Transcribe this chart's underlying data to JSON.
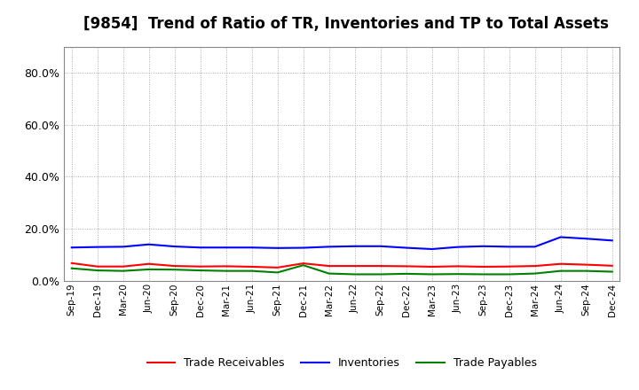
{
  "title": "[9854]  Trend of Ratio of TR, Inventories and TP to Total Assets",
  "x_labels": [
    "Sep-19",
    "Dec-19",
    "Mar-20",
    "Jun-20",
    "Sep-20",
    "Dec-20",
    "Mar-21",
    "Jun-21",
    "Sep-21",
    "Dec-21",
    "Mar-22",
    "Jun-22",
    "Sep-22",
    "Dec-22",
    "Mar-23",
    "Jun-23",
    "Sep-23",
    "Dec-23",
    "Mar-24",
    "Jun-24",
    "Sep-24",
    "Dec-24"
  ],
  "trade_receivables": [
    0.068,
    0.055,
    0.055,
    0.065,
    0.057,
    0.055,
    0.056,
    0.054,
    0.051,
    0.067,
    0.057,
    0.057,
    0.057,
    0.056,
    0.054,
    0.056,
    0.054,
    0.055,
    0.057,
    0.065,
    0.062,
    0.058
  ],
  "inventories": [
    0.128,
    0.13,
    0.131,
    0.14,
    0.132,
    0.128,
    0.128,
    0.128,
    0.126,
    0.127,
    0.131,
    0.133,
    0.133,
    0.127,
    0.122,
    0.13,
    0.133,
    0.131,
    0.131,
    0.168,
    0.162,
    0.155
  ],
  "trade_payables": [
    0.048,
    0.04,
    0.038,
    0.044,
    0.043,
    0.04,
    0.038,
    0.038,
    0.032,
    0.06,
    0.028,
    0.025,
    0.025,
    0.027,
    0.025,
    0.026,
    0.025,
    0.025,
    0.028,
    0.038,
    0.038,
    0.035
  ],
  "tr_color": "#ff0000",
  "inv_color": "#0000ff",
  "tp_color": "#008000",
  "ylim": [
    0.0,
    0.9
  ],
  "yticks": [
    0.0,
    0.2,
    0.4,
    0.6,
    0.8
  ],
  "background_color": "#ffffff",
  "grid_color": "#aaaaaa",
  "title_fontsize": 12,
  "legend_labels": [
    "Trade Receivables",
    "Inventories",
    "Trade Payables"
  ]
}
